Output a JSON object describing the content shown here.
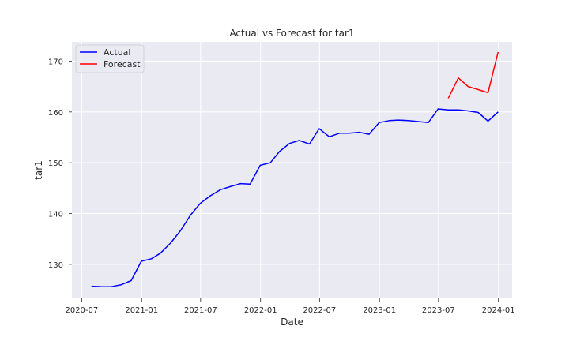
{
  "chart_data": {
    "type": "line",
    "title": "Actual vs Forecast for tar1",
    "xlabel": "Date",
    "ylabel": "tar1",
    "xlim": [
      "2020-06-01",
      "2024-02-12"
    ],
    "ylim": [
      123.3,
      173.8
    ],
    "x_ticks": [
      "2020-07",
      "2021-01",
      "2021-07",
      "2022-01",
      "2022-07",
      "2023-01",
      "2023-07",
      "2024-01"
    ],
    "y_ticks": [
      130,
      140,
      150,
      160,
      170
    ],
    "grid": true,
    "legend_position": "top-left",
    "series": [
      {
        "name": "Actual",
        "color": "#0000ff",
        "x": [
          "2020-07-31",
          "2020-08-31",
          "2020-09-30",
          "2020-10-31",
          "2020-11-30",
          "2020-12-31",
          "2021-01-31",
          "2021-02-28",
          "2021-03-31",
          "2021-04-30",
          "2021-05-31",
          "2021-06-30",
          "2021-07-31",
          "2021-08-31",
          "2021-09-30",
          "2021-10-31",
          "2021-11-30",
          "2021-12-31",
          "2022-01-31",
          "2022-02-28",
          "2022-03-31",
          "2022-04-30",
          "2022-05-31",
          "2022-06-30",
          "2022-07-31",
          "2022-08-31",
          "2022-09-30",
          "2022-10-31",
          "2022-11-30",
          "2022-12-31",
          "2023-01-31",
          "2023-02-28",
          "2023-03-31",
          "2023-04-30",
          "2023-05-31",
          "2023-06-30",
          "2023-07-31",
          "2023-08-31",
          "2023-09-30",
          "2023-10-31",
          "2023-11-30",
          "2023-12-31"
        ],
        "values": [
          125.7,
          125.6,
          125.6,
          126.0,
          126.8,
          130.6,
          131.1,
          132.2,
          134.2,
          136.6,
          139.7,
          142.0,
          143.5,
          144.7,
          145.3,
          145.9,
          145.8,
          149.5,
          150.0,
          152.2,
          153.8,
          154.4,
          153.7,
          156.7,
          155.1,
          155.8,
          155.8,
          156.0,
          155.6,
          157.9,
          158.3,
          158.4,
          158.3,
          158.1,
          157.9,
          160.6,
          160.4,
          160.4,
          160.2,
          159.9,
          158.2,
          160.0
        ]
      },
      {
        "name": "Forecast",
        "color": "#ff0000",
        "x": [
          "2023-07-31",
          "2023-08-31",
          "2023-09-30",
          "2023-10-31",
          "2023-11-30",
          "2023-12-31"
        ],
        "values": [
          162.7,
          166.7,
          165.0,
          164.4,
          163.8,
          171.8
        ]
      }
    ]
  }
}
